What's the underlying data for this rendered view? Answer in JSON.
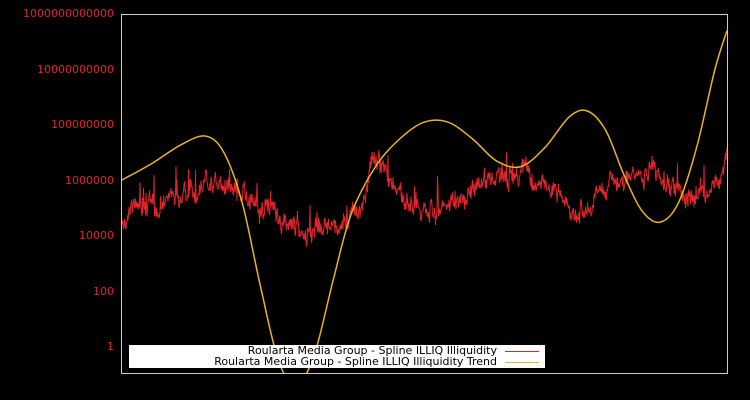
{
  "chart_data": {
    "type": "line",
    "title": "",
    "xlabel": "",
    "ylabel": "",
    "yscale": "log",
    "ylim": [
      0.1,
      1000000000000
    ],
    "grid": false,
    "legend_position": "lower center",
    "y_tick_labels": [
      "1",
      "100",
      "10000",
      "1000000",
      "100000000",
      "10000000000",
      "1000000000000"
    ],
    "x_tick_labels": [],
    "series": [
      {
        "name": "Roularta Media Group - Spline ILLIQ Illiquidity",
        "color": "#e0242c",
        "note": "noisy daily series; approximate log10 values across the x-range (index 0..100)",
        "x": [
          0,
          3,
          6,
          9,
          12,
          15,
          18,
          21,
          24,
          27,
          30,
          33,
          36,
          39,
          42,
          45,
          48,
          51,
          54,
          57,
          60,
          63,
          66,
          69,
          72,
          75,
          78,
          81,
          84,
          87,
          90,
          93,
          96,
          99,
          100
        ],
        "log10_values": [
          4.6,
          5.2,
          5.0,
          5.6,
          5.8,
          6.1,
          5.7,
          5.4,
          5.0,
          4.6,
          4.3,
          4.5,
          4.4,
          4.8,
          6.6,
          6.0,
          5.2,
          4.7,
          4.9,
          5.4,
          5.8,
          6.1,
          6.3,
          6.0,
          5.3,
          4.9,
          5.2,
          5.9,
          6.1,
          6.4,
          6.0,
          5.6,
          5.5,
          5.9,
          7.5
        ]
      },
      {
        "name": "Roularta Media Group - Spline ILLIQ Illiquidity Trend",
        "color": "#e6b522",
        "x": [
          0,
          5,
          10,
          14,
          17,
          20,
          23,
          26,
          29,
          32,
          35,
          38,
          42,
          46,
          50,
          54,
          58,
          62,
          66,
          70,
          74,
          77,
          80,
          83,
          86,
          89,
          92,
          95,
          98,
          100
        ],
        "log10_values": [
          6.0,
          6.6,
          7.3,
          7.6,
          7.0,
          5.2,
          2.2,
          -0.5,
          -1.4,
          -0.2,
          2.4,
          4.8,
          6.5,
          7.5,
          8.1,
          8.1,
          7.5,
          6.7,
          6.5,
          7.2,
          8.3,
          8.5,
          7.8,
          6.2,
          4.9,
          4.5,
          5.2,
          7.2,
          10.0,
          11.4
        ]
      }
    ]
  },
  "legend": {
    "items": [
      {
        "label": "Roularta Media Group - Spline ILLIQ Illiquidity",
        "color": "#e0242c"
      },
      {
        "label": "Roularta Media Group - Spline ILLIQ Illiquidity Trend",
        "color": "#e6b522"
      }
    ]
  },
  "axis": {
    "y_ticks": [
      {
        "label": "1000000000000",
        "log": 12
      },
      {
        "label": "10000000000",
        "log": 10
      },
      {
        "label": "100000000",
        "log": 8
      },
      {
        "label": "1000000",
        "log": 6
      },
      {
        "label": "10000",
        "log": 4
      },
      {
        "label": "100",
        "log": 2
      },
      {
        "label": "1",
        "log": 0
      }
    ]
  },
  "style": {
    "background": "#000000",
    "frame_color": "#cccccc",
    "tick_label_color": "#e0242c"
  }
}
